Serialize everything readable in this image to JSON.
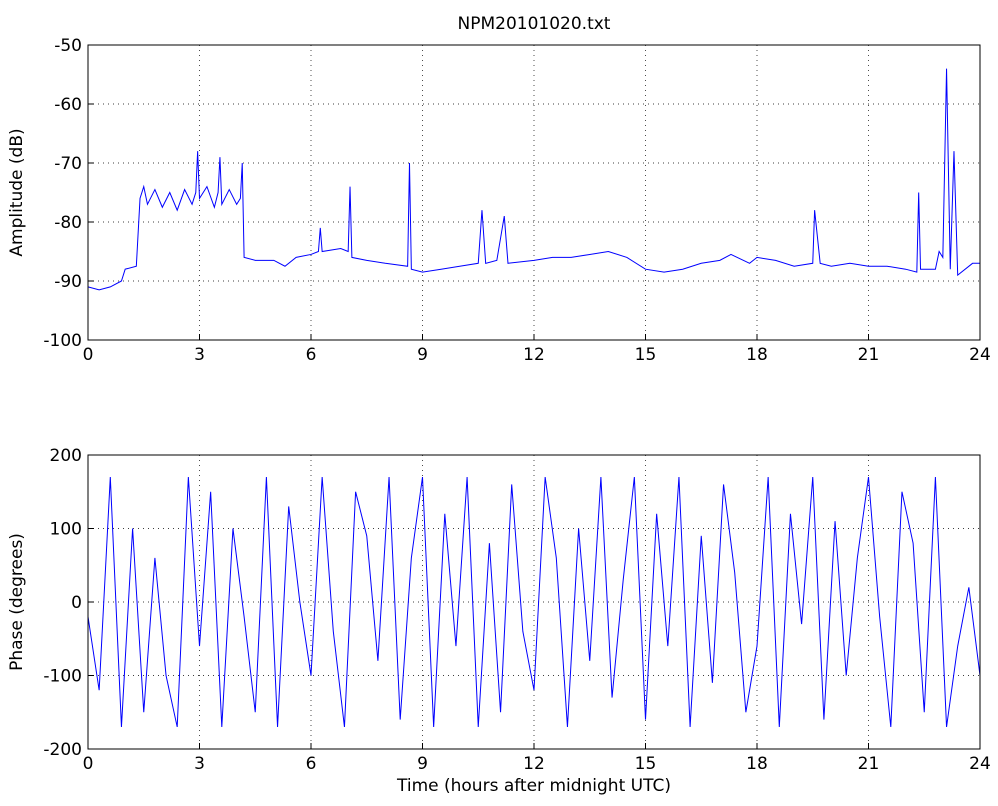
{
  "chart_data": [
    {
      "type": "line",
      "title": "NPM20101020.txt",
      "ylabel": "Amplitude (dB)",
      "x": [
        0,
        0.3,
        0.6,
        0.9,
        1.0,
        1.3,
        1.4,
        1.5,
        1.6,
        1.8,
        2.0,
        2.2,
        2.4,
        2.6,
        2.8,
        2.9,
        2.95,
        3.0,
        3.2,
        3.4,
        3.5,
        3.55,
        3.6,
        3.8,
        4.0,
        4.1,
        4.15,
        4.2,
        4.5,
        5.0,
        5.3,
        5.6,
        6.0,
        6.2,
        6.25,
        6.3,
        6.8,
        7.0,
        7.05,
        7.1,
        7.5,
        8.0,
        8.6,
        8.65,
        8.7,
        9.0,
        9.5,
        10.0,
        10.5,
        10.6,
        10.7,
        11.0,
        11.2,
        11.3,
        12.0,
        12.5,
        13.0,
        13.5,
        14.0,
        14.5,
        15.0,
        15.5,
        16.0,
        16.5,
        17.0,
        17.3,
        17.8,
        18.0,
        18.5,
        19.0,
        19.5,
        19.55,
        19.7,
        20.0,
        20.5,
        21.0,
        21.5,
        22.0,
        22.3,
        22.35,
        22.4,
        22.8,
        22.9,
        23.0,
        23.1,
        23.2,
        23.3,
        23.4,
        23.8,
        24
      ],
      "series": [
        {
          "color": "#0000ff",
          "values": [
            -91,
            -91.5,
            -91,
            -90,
            -88,
            -87.5,
            -76,
            -74,
            -77,
            -74.5,
            -77.5,
            -75,
            -78,
            -74.5,
            -77,
            -75,
            -68,
            -76,
            -74,
            -77.5,
            -75,
            -69,
            -77,
            -74.5,
            -77,
            -76,
            -70,
            -86,
            -86.5,
            -86.5,
            -87.5,
            -86,
            -85.5,
            -85,
            -81,
            -85,
            -84.5,
            -85,
            -74,
            -86,
            -86.5,
            -87,
            -87.5,
            -70,
            -88,
            -88.5,
            -88,
            -87.5,
            -87,
            -78,
            -87,
            -86.5,
            -79,
            -87,
            -86.5,
            -86,
            -86,
            -85.5,
            -85,
            -86,
            -88,
            -88.5,
            -88,
            -87,
            -86.5,
            -85.5,
            -87,
            -86,
            -86.5,
            -87.5,
            -87,
            -78,
            -87,
            -87.5,
            -87,
            -87.5,
            -87.5,
            -88,
            -88.5,
            -75,
            -88,
            -88,
            -85,
            -86,
            -54,
            -88,
            -68,
            -89,
            -87,
            -87
          ]
        }
      ],
      "xlim": [
        0,
        24
      ],
      "xticks": [
        0,
        3,
        6,
        9,
        12,
        15,
        18,
        21,
        24
      ],
      "ylim": [
        -100,
        -50
      ],
      "yticks": [
        -100,
        -90,
        -80,
        -70,
        -60,
        -50
      ],
      "grid": true
    },
    {
      "type": "line",
      "ylabel": "Phase (degrees)",
      "xlabel": "Time (hours after midnight UTC)",
      "x": [
        0,
        0.3,
        0.6,
        0.9,
        1.2,
        1.5,
        1.8,
        2.1,
        2.4,
        2.7,
        3.0,
        3.3,
        3.6,
        3.9,
        4.2,
        4.5,
        4.8,
        5.1,
        5.4,
        5.7,
        6.0,
        6.3,
        6.6,
        6.9,
        7.2,
        7.5,
        7.8,
        8.1,
        8.4,
        8.7,
        9.0,
        9.3,
        9.6,
        9.9,
        10.2,
        10.5,
        10.8,
        11.1,
        11.4,
        11.7,
        12.0,
        12.3,
        12.6,
        12.9,
        13.2,
        13.5,
        13.8,
        14.1,
        14.4,
        14.7,
        15.0,
        15.3,
        15.6,
        15.9,
        16.2,
        16.5,
        16.8,
        17.1,
        17.4,
        17.7,
        18.0,
        18.3,
        18.6,
        18.9,
        19.2,
        19.5,
        19.8,
        20.1,
        20.4,
        20.7,
        21.0,
        21.3,
        21.6,
        21.9,
        22.2,
        22.5,
        22.8,
        23.1,
        23.4,
        23.7,
        24.0
      ],
      "series": [
        {
          "color": "#0000ff",
          "values": [
            -20,
            -120,
            170,
            -170,
            100,
            -150,
            60,
            -100,
            -170,
            170,
            -60,
            150,
            -170,
            100,
            -20,
            -150,
            170,
            -170,
            130,
            0,
            -100,
            170,
            -40,
            -170,
            150,
            90,
            -80,
            170,
            -160,
            60,
            170,
            -170,
            120,
            -60,
            170,
            -170,
            80,
            -150,
            160,
            -40,
            -120,
            170,
            60,
            -170,
            100,
            -80,
            170,
            -130,
            30,
            170,
            -160,
            120,
            -60,
            170,
            -170,
            90,
            -110,
            160,
            40,
            -150,
            -60,
            170,
            -170,
            120,
            -30,
            170,
            -160,
            110,
            -100,
            60,
            170,
            -20,
            -170,
            150,
            80,
            -150,
            170,
            -170,
            -60,
            20,
            -100
          ]
        }
      ],
      "xlim": [
        0,
        24
      ],
      "xticks": [
        0,
        3,
        6,
        9,
        12,
        15,
        18,
        21,
        24
      ],
      "ylim": [
        -200,
        200
      ],
      "yticks": [
        -200,
        -100,
        0,
        100,
        200
      ],
      "grid": true
    }
  ]
}
